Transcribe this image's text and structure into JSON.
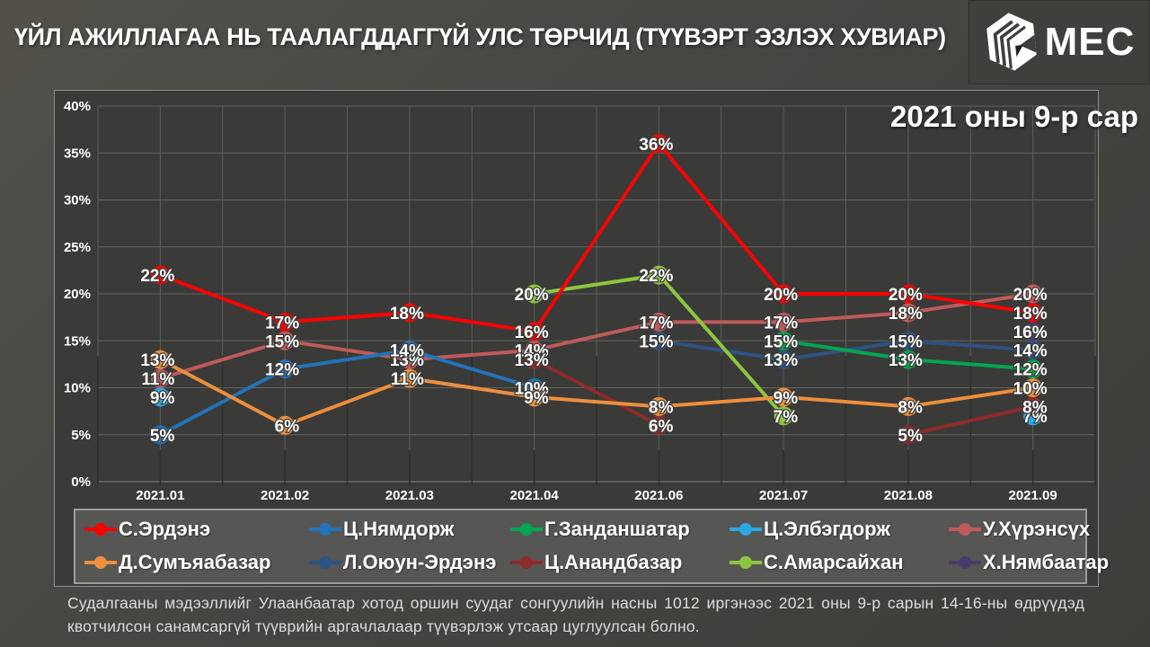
{
  "header": {
    "title": "ҮЙЛ АЖИЛЛАГАА НЬ ТААЛАГДДАГГҮЙ УЛС ТӨРЧИД (ТҮҮВЭРТ ЭЗЛЭХ ХУВИАР)",
    "logo_text": "MEC"
  },
  "chart_data": {
    "type": "line",
    "title": "ҮЙЛ АЖИЛЛАГАА НЬ ТААЛАГДДАГГҮЙ УЛС ТӨРЧИД (ТҮҮВЭРТ ЭЗЛЭХ ХУВИАР)",
    "annotation": "2021 оны 9-р сар",
    "categories": [
      "2021.01",
      "2021.02",
      "2021.03",
      "2021.04",
      "2021.06",
      "2021.07",
      "2021.08",
      "2021.09"
    ],
    "y_ticks": [
      "40%",
      "35%",
      "30%",
      "25%",
      "20%",
      "15%",
      "10%",
      "5%",
      "0%"
    ],
    "ylim": [
      0,
      40
    ],
    "grid": true,
    "legend_position": "bottom",
    "value_suffix": "%",
    "series": [
      {
        "name": "С.Эрдэнэ",
        "color": "#fe0000",
        "values": [
          22,
          17,
          18,
          16,
          36,
          20,
          20,
          18
        ]
      },
      {
        "name": "Ц.Нямдорж",
        "color": "#2273b9",
        "values": [
          5,
          12,
          14,
          10,
          null,
          null,
          null,
          null
        ]
      },
      {
        "name": "Г.Занданшатар",
        "color": "#00a651",
        "values": [
          null,
          null,
          null,
          null,
          null,
          15,
          13,
          12
        ]
      },
      {
        "name": "Ц.Элбэгдорж",
        "color": "#2ba9e1",
        "values": [
          9,
          null,
          null,
          null,
          null,
          null,
          null,
          7
        ]
      },
      {
        "name": "У.Хүрэнсүх",
        "color": "#c05b5b",
        "values": [
          11,
          15,
          13,
          14,
          17,
          17,
          18,
          20
        ]
      },
      {
        "name": "Д.Сумъяабазар",
        "color": "#ed8f3d",
        "values": [
          13,
          6,
          11,
          9,
          8,
          9,
          8,
          10
        ]
      },
      {
        "name": "Л.Оюун-Эрдэнэ",
        "color": "#2e5283",
        "values": [
          null,
          null,
          null,
          null,
          15,
          13,
          15,
          14
        ]
      },
      {
        "name": "Ц.Анандбазар",
        "color": "#8e2b2b",
        "values": [
          null,
          null,
          null,
          13,
          6,
          null,
          5,
          8
        ]
      },
      {
        "name": "С.Амарсайхан",
        "color": "#8cc63f",
        "values": [
          null,
          null,
          null,
          20,
          22,
          7,
          null,
          null
        ]
      },
      {
        "name": "Х.Нямбаатар",
        "color": "#4b3b6b",
        "values": [
          null,
          null,
          null,
          null,
          null,
          null,
          null,
          16
        ]
      }
    ]
  },
  "footer": {
    "note": "Судалгааны мэдээллийг Улаанбаатар хотод оршин суудаг сонгуулийн насны 1012 иргэнээс 2021 оны 9-р сарын 14-16-ны өдрүүдэд квотчилсон санамсаргүй түүврийн аргачлалаар түүвэрлэж утсаар цуглуулсан болно."
  },
  "colors": {
    "page_background": "#474542",
    "plot_background": "#3a3a38",
    "legend_background": "#565654",
    "gridline_light": "#636363",
    "gridline_dark": "#2e2e2e",
    "text": "#ffffff"
  }
}
